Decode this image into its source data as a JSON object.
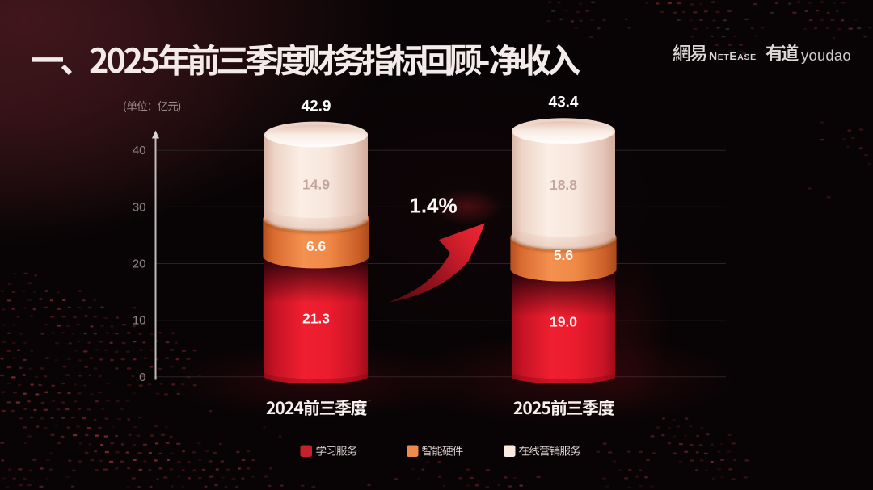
{
  "slide": {
    "title": "一、2025年前三季度财务指标回顾-净收入"
  },
  "logos": {
    "netease_cn": "網易",
    "netease_en": "NetEase",
    "youdao_cn": "有道",
    "youdao_en": "youdao"
  },
  "chart_data": {
    "type": "bar",
    "stacked": true,
    "title": "2025年前三季度财务指标回顾-净收入",
    "unit_note": "(单位：亿元)",
    "unit": "亿元",
    "categories": [
      "2024前三季度",
      "2025前三季度"
    ],
    "series": [
      {
        "name": "学习服务",
        "color": "#c4222a",
        "values": [
          21.3,
          19.0
        ],
        "value_labels": [
          "21.3",
          "19.0"
        ]
      },
      {
        "name": "智能硬件",
        "color": "#ef8a4d",
        "values": [
          6.6,
          5.6
        ],
        "value_labels": [
          "6.6",
          "5.6"
        ]
      },
      {
        "name": "在线营销服务",
        "color": "#fbeadf",
        "values": [
          14.9,
          18.8
        ],
        "value_labels": [
          "14.9",
          "18.8"
        ]
      }
    ],
    "totals": [
      42.9,
      43.4
    ],
    "total_labels": [
      "42.9",
      "43.4"
    ],
    "total_change_pct": "1.4%",
    "y_axis": {
      "min": 0,
      "max": 40,
      "ticks": [
        "40",
        "30",
        "20",
        "10",
        "0"
      ]
    },
    "legend_position": "bottom",
    "grid": true,
    "accent_color": "#e6232f",
    "background_color": "#070304"
  }
}
